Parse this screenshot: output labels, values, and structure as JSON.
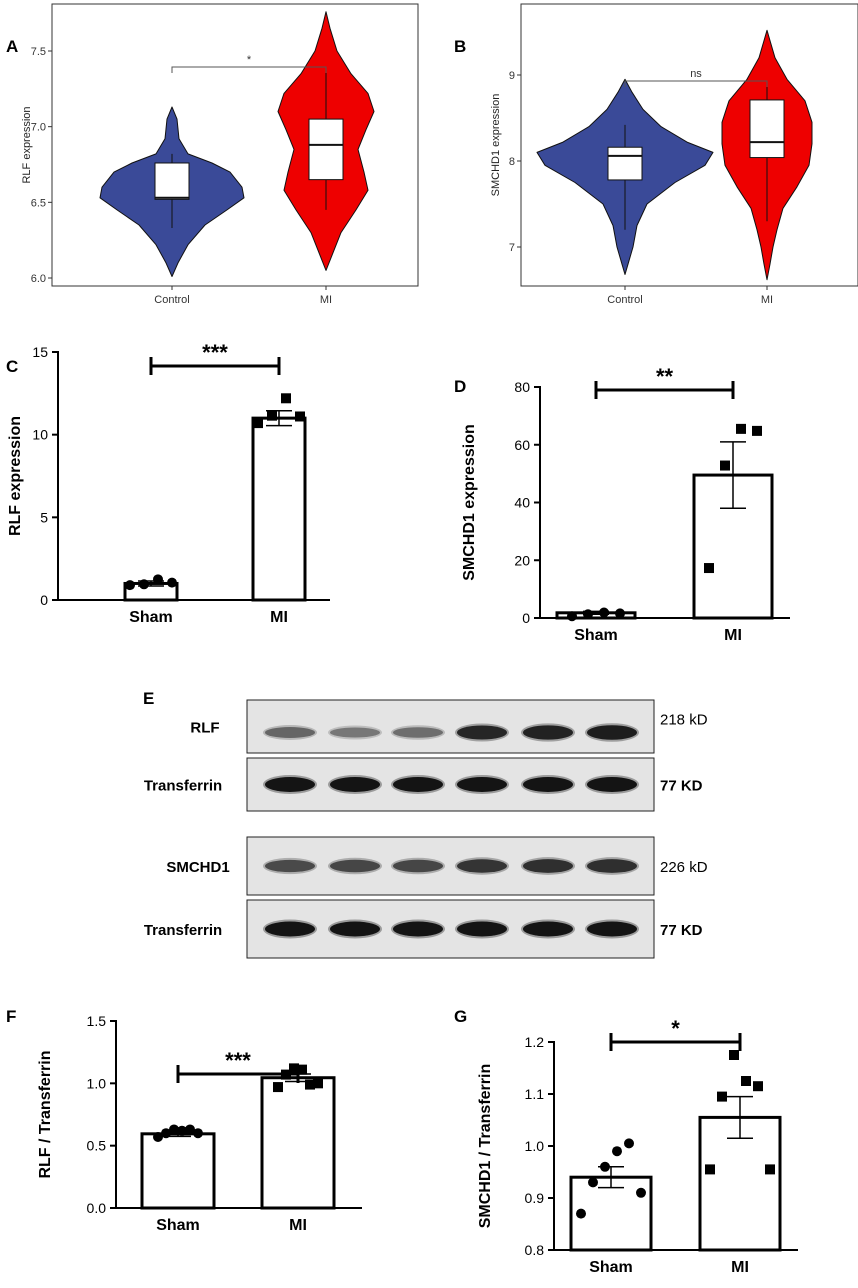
{
  "panels": {
    "A": "A",
    "B": "B",
    "C": "C",
    "D": "D",
    "E": "E",
    "F": "F",
    "G": "G"
  },
  "chart_data": [
    {
      "id": "A",
      "type": "violin",
      "ylabel": "RLF expression",
      "ylim": [
        6.0,
        7.5
      ],
      "yticks": [
        "6.0",
        "6.5",
        "7.0",
        "7.5"
      ],
      "categories": [
        "Control",
        "MI"
      ],
      "colors": [
        "#3a4a98",
        "#ee0000"
      ],
      "boxes": [
        {
          "min": 6.33,
          "q1": 6.52,
          "median": 6.53,
          "q3": 6.76,
          "max": 6.82
        },
        {
          "min": 6.45,
          "q1": 6.65,
          "median": 6.88,
          "q3": 7.05,
          "max": 7.37
        }
      ],
      "significance": "*"
    },
    {
      "id": "B",
      "type": "violin",
      "ylabel": "SMCHD1 expression",
      "ylim": [
        7,
        9
      ],
      "yticks": [
        "7",
        "8",
        "9"
      ],
      "categories": [
        "Control",
        "MI"
      ],
      "colors": [
        "#3a4a98",
        "#ee0000"
      ],
      "boxes": [
        {
          "min": 7.2,
          "q1": 7.78,
          "median": 8.06,
          "q3": 8.16,
          "max": 8.42
        },
        {
          "min": 7.3,
          "q1": 8.04,
          "median": 8.22,
          "q3": 8.71,
          "max": 8.9
        }
      ],
      "significance": "ns"
    },
    {
      "id": "C",
      "type": "bar",
      "ylabel": "RLF  expression",
      "ylim": [
        0,
        15
      ],
      "yticks": [
        "0",
        "5",
        "10",
        "15"
      ],
      "categories": [
        "Sham",
        "MI"
      ],
      "values": [
        1.0,
        11.0
      ],
      "sem": [
        0.15,
        0.45
      ],
      "points": [
        [
          0.9,
          0.95,
          1.25,
          1.05
        ],
        [
          10.7,
          11.15,
          12.2,
          11.1
        ]
      ],
      "markers": [
        "circle",
        "square"
      ],
      "significance": "***"
    },
    {
      "id": "D",
      "type": "bar",
      "ylabel": "SMCHD1 expression",
      "ylim": [
        0,
        80
      ],
      "yticks": [
        "0",
        "20",
        "40",
        "60",
        "80"
      ],
      "categories": [
        "Sham",
        "MI"
      ],
      "values": [
        1.8,
        49.5
      ],
      "sem": [
        0.5,
        11.5
      ],
      "points": [
        [
          0.6,
          1.3,
          1.9,
          1.6
        ],
        [
          17.3,
          52.8,
          65.5,
          64.8
        ]
      ],
      "markers": [
        "circle",
        "square"
      ],
      "significance": "**"
    },
    {
      "id": "F",
      "type": "bar",
      "ylabel": "RLF / Transferrin",
      "ylim": [
        0.0,
        1.5
      ],
      "yticks": [
        "0.0",
        "0.5",
        "1.0",
        "1.5"
      ],
      "categories": [
        "Sham",
        "MI"
      ],
      "values": [
        0.595,
        1.045
      ],
      "sem": [
        0.02,
        0.03
      ],
      "points": [
        [
          0.57,
          0.6,
          0.63,
          0.62,
          0.63,
          0.6
        ],
        [
          0.97,
          1.07,
          1.12,
          1.11,
          0.99,
          1.0
        ]
      ],
      "markers": [
        "circle",
        "square"
      ],
      "significance": "***"
    },
    {
      "id": "G",
      "type": "bar",
      "ylabel": "SMCHD1 / Transferrin",
      "ylim": [
        0.8,
        1.2
      ],
      "yticks": [
        "0.8",
        "0.9",
        "1.0",
        "1.1",
        "1.2"
      ],
      "categories": [
        "Sham",
        "MI"
      ],
      "values": [
        0.94,
        1.055
      ],
      "sem": [
        0.02,
        0.04
      ],
      "points": [
        [
          0.87,
          0.93,
          0.96,
          0.99,
          1.005,
          0.91
        ],
        [
          0.955,
          1.095,
          1.175,
          1.125,
          1.115,
          0.955
        ]
      ],
      "markers": [
        "circle",
        "square"
      ],
      "significance": "*"
    }
  ],
  "blot": {
    "rows": [
      {
        "label": "RLF",
        "size": "218 kD"
      },
      {
        "label": "Transferrin",
        "size": "77 KD"
      },
      {
        "label": "SMCHD1",
        "size": "226 kD"
      },
      {
        "label": "Transferrin",
        "size": "77 KD"
      }
    ],
    "intensity": [
      [
        0.55,
        0.45,
        0.5,
        0.9,
        0.92,
        0.95
      ],
      [
        1,
        1,
        1,
        1,
        1,
        1
      ],
      [
        0.7,
        0.72,
        0.72,
        0.82,
        0.85,
        0.85
      ],
      [
        1,
        1,
        1,
        1,
        1,
        1
      ]
    ]
  }
}
